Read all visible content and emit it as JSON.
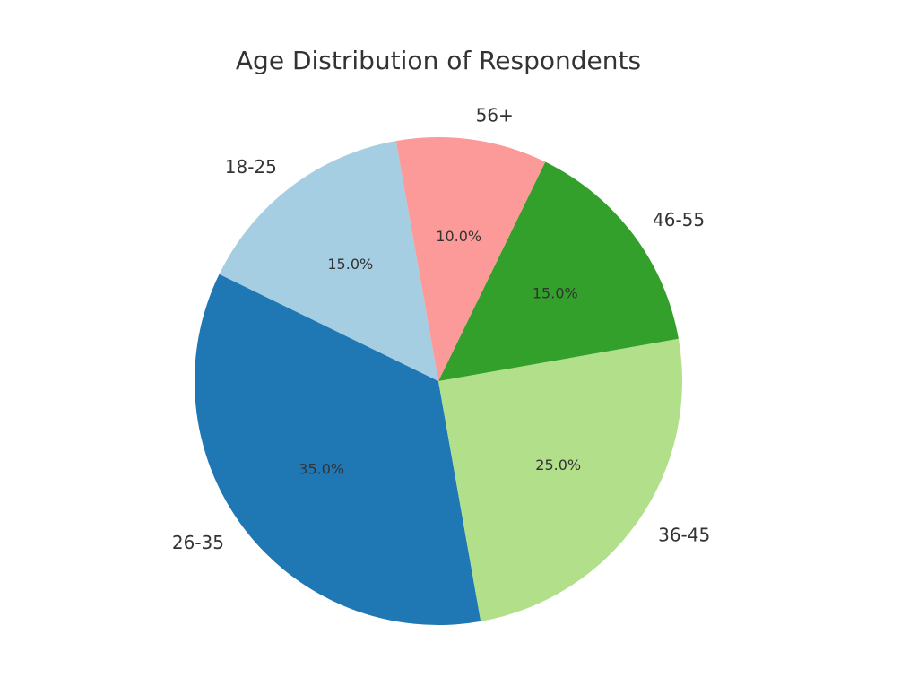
{
  "chart_data": {
    "type": "pie",
    "title": "Age Distribution of Respondents",
    "start_angle_deg": 100,
    "direction": "counterclockwise",
    "slices": [
      {
        "label": "18-25",
        "value": 15.0,
        "percent_label": "15.0%",
        "color": "#a6cee3"
      },
      {
        "label": "26-35",
        "value": 35.0,
        "percent_label": "35.0%",
        "color": "#1f78b4"
      },
      {
        "label": "36-45",
        "value": 25.0,
        "percent_label": "25.0%",
        "color": "#b2df8a"
      },
      {
        "label": "46-55",
        "value": 15.0,
        "percent_label": "15.0%",
        "color": "#33a02c"
      },
      {
        "label": "56+",
        "value": 10.0,
        "percent_label": "10.0%",
        "color": "#fb9a99"
      }
    ]
  }
}
